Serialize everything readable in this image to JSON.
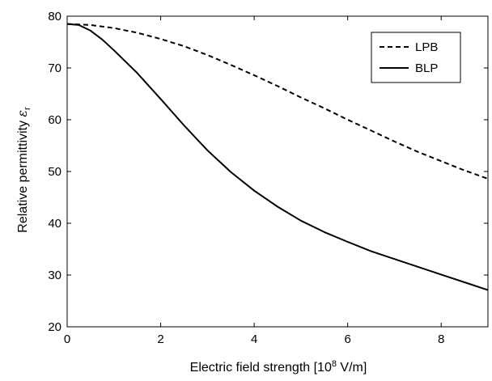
{
  "chart_data": {
    "type": "line",
    "xlabel_prefix": "Electric field strength [10",
    "xlabel_exp": "8",
    "xlabel_suffix": " V/m]",
    "ylabel_prefix": "Relative permittivity ",
    "ylabel_symbol": "ε",
    "ylabel_sub": "r",
    "xlim": [
      0,
      9
    ],
    "ylim": [
      20,
      80
    ],
    "x_ticks": [
      0,
      2,
      4,
      6,
      8
    ],
    "y_ticks": [
      20,
      30,
      40,
      50,
      60,
      70,
      80
    ],
    "legend_position": "top-right",
    "grid": false,
    "series": [
      {
        "name": "LPB",
        "style": "dashed",
        "color": "#000000",
        "x": [
          0,
          0.5,
          1,
          1.5,
          2,
          2.5,
          3,
          3.5,
          4,
          4.5,
          5,
          5.5,
          6,
          6.5,
          7,
          7.5,
          8,
          8.5,
          9
        ],
        "y": [
          78.5,
          78.3,
          77.7,
          76.8,
          75.6,
          74.2,
          72.5,
          70.6,
          68.6,
          66.5,
          64.3,
          62.2,
          60.0,
          57.9,
          55.8,
          53.8,
          52.0,
          50.2,
          48.6
        ]
      },
      {
        "name": "BLP",
        "style": "solid",
        "color": "#000000",
        "x": [
          0,
          0.25,
          0.5,
          0.75,
          1,
          1.5,
          2,
          2.5,
          3,
          3.5,
          4,
          4.5,
          5,
          5.5,
          6,
          6.5,
          7,
          7.5,
          8,
          8.5,
          9
        ],
        "y": [
          78.5,
          78.3,
          77.2,
          75.5,
          73.4,
          69.0,
          64.0,
          58.9,
          54.1,
          49.9,
          46.3,
          43.2,
          40.5,
          38.3,
          36.4,
          34.6,
          33.1,
          31.6,
          30.1,
          28.6,
          27.1
        ]
      }
    ]
  }
}
